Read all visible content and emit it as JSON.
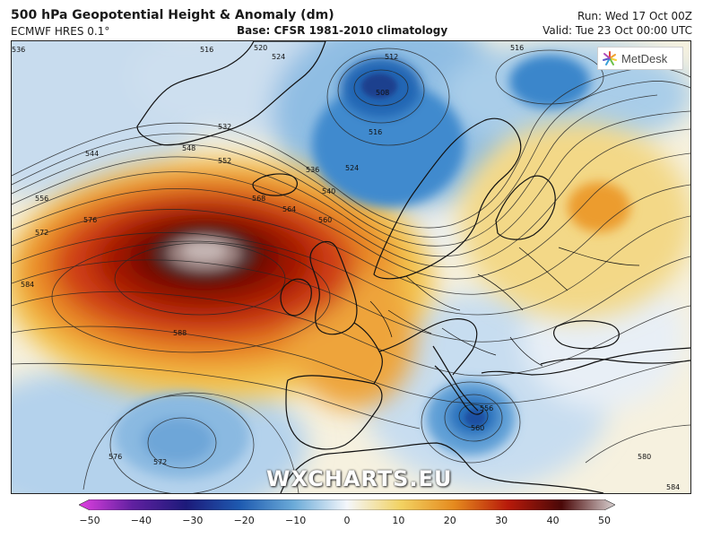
{
  "header": {
    "title": "500 hPa Geopotential Height & Anomaly (dm)",
    "model": "ECMWF HRES 0.1°",
    "base": "Base: CFSR 1981-2010 climatology",
    "run": "Run: Wed 17 Oct 00Z",
    "valid": "Valid: Tue 23 Oct 00:00 UTC"
  },
  "logo": {
    "text": "MetDesk",
    "icon": "metdesk-logo-icon"
  },
  "watermark": {
    "text": "WXCHARTS.EU"
  },
  "colorbar": {
    "ticks": [
      "−50",
      "−40",
      "−30",
      "−20",
      "−10",
      "0",
      "10",
      "20",
      "30",
      "40",
      "50"
    ],
    "range": [
      -50,
      50
    ],
    "colors": {
      "min": "#e040e0",
      "m40": "#6020a0",
      "m30": "#1c1a7a",
      "m20": "#1e5ab0",
      "m10": "#6aaad8",
      "zero": "#f4f7fb",
      "p10": "#f2d262",
      "p20": "#e58a1e",
      "p30": "#b81a0a",
      "p40": "#4a0808",
      "max": "#d8d0d0"
    }
  },
  "map": {
    "contour_labels": [
      "536",
      "516",
      "520",
      "524",
      "512",
      "508",
      "516",
      "524",
      "532",
      "536",
      "548",
      "552",
      "544",
      "556",
      "540",
      "560",
      "564",
      "568",
      "572",
      "576",
      "584",
      "588",
      "576",
      "572",
      "580",
      "584",
      "560",
      "556",
      "516"
    ],
    "anomaly_centers": [
      {
        "name": "positive-north-atlantic",
        "value": 40
      },
      {
        "name": "negative-norway",
        "value": -25
      },
      {
        "name": "negative-ionian",
        "value": -22
      },
      {
        "name": "negative-azores",
        "value": -15
      }
    ]
  }
}
